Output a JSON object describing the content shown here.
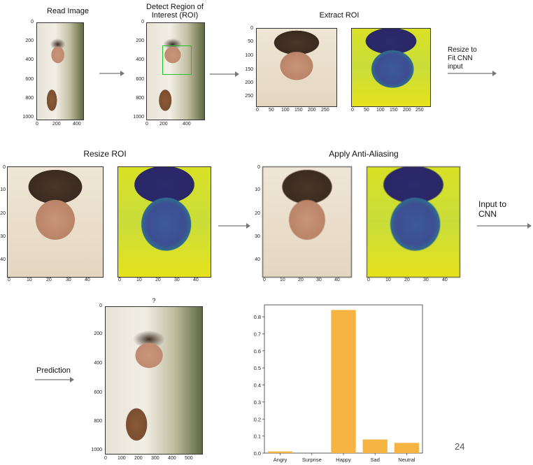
{
  "steps": {
    "read_image": "Read Image",
    "detect_roi": "Detect Region of\nInterest (ROI)",
    "extract_roi": "Extract ROI",
    "resize_to_fit": "Resize to\nFit CNN\ninput",
    "resize_roi": "Resize ROI",
    "anti_aliasing": "Apply Anti-Aliasing",
    "input_to_cnn": "Input to\nCNN",
    "prediction": "Prediction"
  },
  "plots": {
    "read_image": {
      "y_ticks": [
        "0",
        "200",
        "400",
        "600",
        "800",
        "1000"
      ],
      "x_ticks": [
        "0",
        "200",
        "400"
      ]
    },
    "detect_roi": {
      "y_ticks": [
        "0",
        "200",
        "400",
        "600",
        "800",
        "1000"
      ],
      "x_ticks": [
        "0",
        "200",
        "400"
      ],
      "box_color": "#22c22a"
    },
    "extract_roi": {
      "y_ticks": [
        "0",
        "50",
        "100",
        "150",
        "200",
        "250"
      ],
      "x_ticks": [
        "0",
        "50",
        "100",
        "150",
        "200",
        "250"
      ]
    },
    "resize_roi": {
      "y_ticks": [
        "0",
        "10",
        "20",
        "30",
        "40"
      ],
      "x_ticks": [
        "0",
        "10",
        "20",
        "30",
        "40"
      ]
    },
    "prediction_image": {
      "title": "?",
      "y_ticks": [
        "0",
        "200",
        "400",
        "600",
        "800",
        "1000"
      ],
      "x_ticks": [
        "0",
        "100",
        "200",
        "300",
        "400",
        "500"
      ]
    }
  },
  "chart_data": {
    "type": "bar",
    "categories": [
      "Angry",
      "Surprise",
      "Happy",
      "Sad",
      "Neutral"
    ],
    "values": [
      0.01,
      0.0,
      0.84,
      0.08,
      0.06
    ],
    "ylim": [
      0,
      0.87
    ],
    "y_ticks": [
      "0.0",
      "0.1",
      "0.2",
      "0.3",
      "0.4",
      "0.5",
      "0.6",
      "0.7",
      "0.8"
    ],
    "color": "#f5b342",
    "grid": false
  },
  "page_number": "24"
}
